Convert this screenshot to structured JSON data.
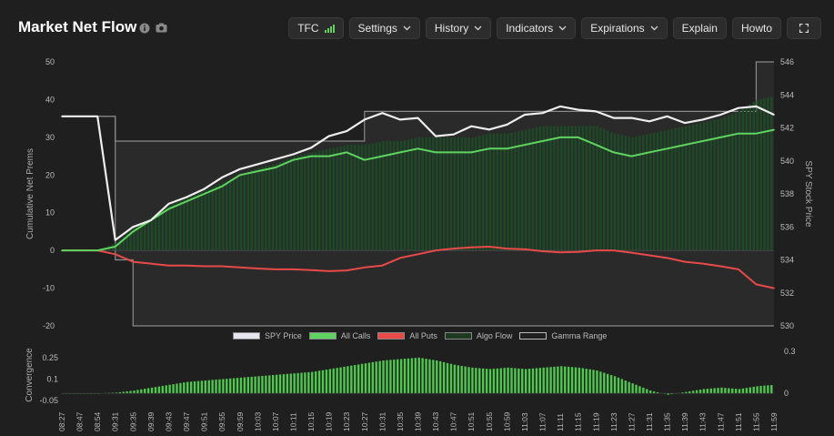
{
  "header": {
    "title": "Market Net Flow",
    "info_icon": "info-icon",
    "camera_icon": "camera-icon"
  },
  "toolbar": {
    "tfc": "TFC",
    "settings": "Settings",
    "history": "History",
    "indicators": "Indicators",
    "expirations": "Expirations",
    "explain": "Explain",
    "howto": "Howto",
    "fullscreen_icon": "fullscreen-icon"
  },
  "colors": {
    "spy": "#eeeeee",
    "calls": "#5fd35f",
    "puts": "#e84a4a",
    "algo": "#1f5a2a",
    "gamma": "#8a8a8a",
    "convergence": "#4ec94e"
  },
  "legend": [
    "SPY Price",
    "All Calls",
    "All Puts",
    "Algo Flow",
    "Gamma Range"
  ],
  "chart_data": [
    {
      "type": "line",
      "ylabel": "Cumulative Net Prems",
      "y2label": "SPY Stock Price",
      "ylim": [
        -20,
        50
      ],
      "y2lim": [
        530,
        546
      ],
      "yticks": [
        "50",
        "40",
        "30",
        "20",
        "10",
        "0",
        "-10",
        "-20"
      ],
      "y2ticks": [
        "546",
        "544",
        "542",
        "540",
        "538",
        "536",
        "534",
        "532",
        "530"
      ],
      "x": [
        "08:27",
        "08:47",
        "08:54",
        "09:31",
        "09:35",
        "09:39",
        "09:43",
        "09:47",
        "09:51",
        "09:55",
        "09:59",
        "10:03",
        "10:07",
        "10:11",
        "10:15",
        "10:19",
        "10:23",
        "10:27",
        "10:31",
        "10:35",
        "10:39",
        "10:43",
        "10:47",
        "10:51",
        "10:55",
        "10:59",
        "11:03",
        "11:07",
        "11:11",
        "11:15",
        "11:19",
        "11:23",
        "11:27",
        "11:31",
        "11:35",
        "11:39",
        "11:43",
        "11:47",
        "11:51",
        "11:55",
        "11:59"
      ],
      "series": [
        {
          "name": "SPY Price",
          "axis": "right",
          "values": [
            542.7,
            542.7,
            542.7,
            535.2,
            536.0,
            536.4,
            537.4,
            537.8,
            538.3,
            539.0,
            539.5,
            539.8,
            540.1,
            540.4,
            540.8,
            541.5,
            541.8,
            542.5,
            542.9,
            542.5,
            542.6,
            541.5,
            541.6,
            542.1,
            541.9,
            542.2,
            542.8,
            542.9,
            543.3,
            543.1,
            543.0,
            542.6,
            542.6,
            542.4,
            542.7,
            542.3,
            542.5,
            542.8,
            543.2,
            543.3,
            542.8
          ]
        },
        {
          "name": "All Calls",
          "axis": "left",
          "values": [
            0,
            0,
            0,
            1,
            5,
            8,
            11,
            13,
            15,
            17,
            20,
            21,
            22,
            24,
            25,
            25,
            26,
            24,
            25,
            26,
            27,
            26,
            26,
            26,
            27,
            27,
            28,
            29,
            30,
            30,
            28,
            26,
            25,
            26,
            27,
            28,
            29,
            30,
            31,
            31,
            32
          ]
        },
        {
          "name": "All Puts",
          "axis": "left",
          "values": [
            0,
            0,
            0,
            -1,
            -3,
            -3.5,
            -4,
            -4,
            -4.2,
            -4.2,
            -4.5,
            -4.8,
            -5,
            -5,
            -5.2,
            -5.5,
            -5.3,
            -4.5,
            -4,
            -2,
            -1,
            0,
            0.5,
            0.8,
            1,
            0.5,
            0.3,
            -0.2,
            -0.5,
            -0.4,
            0,
            0,
            -0.6,
            -1.3,
            -2,
            -3,
            -3.5,
            -4.2,
            -5,
            -9,
            -10
          ]
        },
        {
          "name": "Algo Flow",
          "axis": "left",
          "values": [
            0,
            0,
            0,
            2,
            6,
            9,
            12,
            14,
            16,
            18,
            20,
            22,
            23,
            25,
            26,
            27,
            28,
            28,
            29,
            29,
            30,
            30,
            30,
            30,
            31,
            31,
            32,
            33,
            33,
            33,
            33,
            31,
            30,
            31,
            32,
            33,
            34,
            35,
            37,
            40,
            41
          ]
        },
        {
          "name": "Gamma Range",
          "axis": "right",
          "upper": [
            542.7,
            542.7,
            542.7,
            541.2,
            541.2,
            541.2,
            541.2,
            541.2,
            541.2,
            541.2,
            541.2,
            541.2,
            541.2,
            541.2,
            541.2,
            541.2,
            541.2,
            543.0,
            543.0,
            543.0,
            543.0,
            543.0,
            543.0,
            543.0,
            543.0,
            543.0,
            543.0,
            543.0,
            543.0,
            543.0,
            543.0,
            543.0,
            543.0,
            543.0,
            543.0,
            543.0,
            543.0,
            543.0,
            543.0,
            546.0,
            546.0
          ],
          "lower": [
            542.7,
            542.7,
            542.7,
            534.0,
            530.0,
            530.0,
            530.0,
            530.0,
            530.0,
            530.0,
            530.0,
            530.0,
            530.0,
            530.0,
            530.0,
            530.0,
            530.0,
            530.0,
            530.0,
            530.0,
            530.0,
            530.0,
            530.0,
            530.0,
            530.0,
            530.0,
            530.0,
            530.0,
            530.0,
            530.0,
            530.0,
            530.0,
            530.0,
            530.0,
            530.0,
            530.0,
            530.0,
            530.0,
            530.0,
            530.0,
            530.0
          ]
        }
      ]
    },
    {
      "type": "bar",
      "ylabel": "Convergence",
      "ylim": [
        -0.05,
        0.3
      ],
      "yticks": [
        "0.25",
        "0.1",
        "-0.05"
      ],
      "y2ticks": [
        "0.3",
        "0"
      ],
      "x": [
        "08:27",
        "08:47",
        "08:54",
        "09:31",
        "09:35",
        "09:39",
        "09:43",
        "09:47",
        "09:51",
        "09:55",
        "09:59",
        "10:03",
        "10:07",
        "10:11",
        "10:15",
        "10:19",
        "10:23",
        "10:27",
        "10:31",
        "10:35",
        "10:39",
        "10:43",
        "10:47",
        "10:51",
        "10:55",
        "10:59",
        "11:03",
        "11:07",
        "11:11",
        "11:15",
        "11:19",
        "11:23",
        "11:27",
        "11:31",
        "11:35",
        "11:39",
        "11:43",
        "11:47",
        "11:51",
        "11:55",
        "11:59"
      ],
      "values": [
        0,
        0,
        0,
        0.005,
        0.02,
        0.04,
        0.06,
        0.08,
        0.09,
        0.1,
        0.11,
        0.12,
        0.13,
        0.14,
        0.15,
        0.17,
        0.19,
        0.21,
        0.23,
        0.24,
        0.25,
        0.23,
        0.2,
        0.18,
        0.17,
        0.18,
        0.17,
        0.18,
        0.19,
        0.18,
        0.16,
        0.12,
        0.07,
        0.02,
        -0.01,
        0.01,
        0.03,
        0.04,
        0.03,
        0.05,
        0.06
      ]
    }
  ]
}
